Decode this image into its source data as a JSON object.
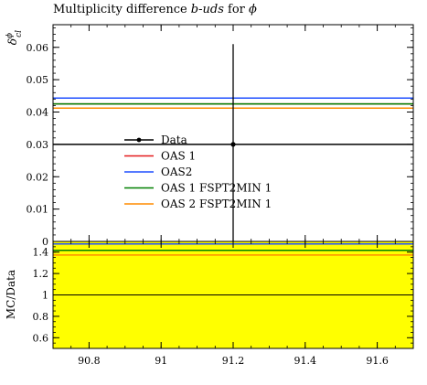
{
  "title": {
    "prefix": "Multiplicity difference ",
    "italic": "b-uds",
    "mid": " for ",
    "symbol": "ϕ"
  },
  "chart_data": [
    {
      "type": "line",
      "panel": "main",
      "ylabel": "δ",
      "ylabel_sup": "ϕ",
      "ylabel_sub": "cl",
      "xlim": [
        90.7,
        91.7
      ],
      "ylim": [
        0,
        0.067
      ],
      "yticks": [
        0,
        0.01,
        0.02,
        0.03,
        0.04,
        0.05,
        0.06
      ],
      "ytick_labels": [
        "0",
        "0.01",
        "0.02",
        "0.03",
        "0.04",
        "0.05",
        "0.06"
      ],
      "data_point": {
        "name": "Data",
        "x": 91.2,
        "y": 0.03,
        "yerr": 0.031,
        "color": "#000000"
      },
      "series": [
        {
          "name": "Data",
          "y": 0.03,
          "color": "#000000"
        },
        {
          "name": "OAS 1",
          "y": 0.0425,
          "color": "#e41a1c"
        },
        {
          "name": "OAS2",
          "y": 0.0443,
          "color": "#1f4fff"
        },
        {
          "name": "OAS 1 FSPT2MIN 1",
          "y": 0.0425,
          "color": "#008000"
        },
        {
          "name": "OAS 2 FSPT2MIN 1",
          "y": 0.0412,
          "color": "#ff8c00"
        }
      ],
      "legend": "center-left"
    },
    {
      "type": "line",
      "panel": "ratio",
      "ylabel": "MC/Data",
      "xlim": [
        90.7,
        91.7
      ],
      "ylim": [
        0.5,
        1.5
      ],
      "xticks": [
        90.8,
        91,
        91.2,
        91.4,
        91.6
      ],
      "xtick_labels": [
        "90.8",
        "91",
        "91.2",
        "91.4",
        "91.6"
      ],
      "yticks": [
        0.6,
        0.8,
        1,
        1.2,
        1.4
      ],
      "ytick_labels": [
        "0.6",
        "0.8",
        "1",
        "1.2",
        "1.4"
      ],
      "band": {
        "low": 0.0,
        "high": 2.03,
        "color": "#ffff00"
      },
      "reference": 1,
      "series": [
        {
          "name": "OAS 1",
          "y": 1.4167,
          "color": "#e41a1c"
        },
        {
          "name": "OAS2",
          "y": 1.4767,
          "color": "#1f4fff"
        },
        {
          "name": "OAS 1 FSPT2MIN 1",
          "y": 1.4167,
          "color": "#008000"
        },
        {
          "name": "OAS 2 FSPT2MIN 1",
          "y": 1.3733,
          "color": "#ff8c00"
        }
      ]
    }
  ]
}
